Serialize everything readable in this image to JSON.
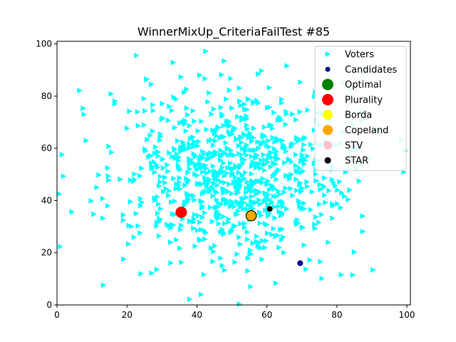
{
  "chart_data": {
    "type": "scatter",
    "title": "WinnerMixUp_CriteriaFailTest #85",
    "xlabel": "",
    "ylabel": "",
    "xlim": [
      0,
      101
    ],
    "ylim": [
      0,
      101
    ],
    "x_ticks": [
      "0",
      "20",
      "40",
      "60",
      "80",
      "100"
    ],
    "y_ticks": [
      "0",
      "20",
      "40",
      "60",
      "80",
      "100"
    ],
    "grid": false,
    "legend_position": "top-right",
    "voters_generation": {
      "count": 900,
      "center": [
        50,
        50
      ],
      "std": 17,
      "seed": 85
    },
    "colors": {
      "Voters": "#00ffff",
      "Candidates": "#00008b",
      "Optimal": "#008000",
      "Plurality": "#ff0000",
      "Borda": "#ffff00",
      "Copeland": "#ffa500",
      "STV": "#ffc0cb",
      "STAR": "#000000"
    },
    "series": [
      {
        "name": "Voters",
        "marker": "triangle-right",
        "points": []
      },
      {
        "name": "Candidates",
        "marker": "circle",
        "points": [
          [
            35.5,
            35.5
          ],
          [
            55.5,
            34.2
          ],
          [
            60.8,
            36.8
          ],
          [
            69.5,
            16.0
          ]
        ]
      },
      {
        "name": "Optimal",
        "marker": "circle",
        "points": [
          [
            55.5,
            34.2
          ]
        ]
      },
      {
        "name": "Plurality",
        "marker": "circle",
        "points": [
          [
            35.5,
            35.5
          ]
        ]
      },
      {
        "name": "Borda",
        "marker": "circle",
        "points": [
          [
            55.5,
            34.2
          ]
        ]
      },
      {
        "name": "Copeland",
        "marker": "circle",
        "points": [
          [
            55.5,
            34.2
          ]
        ]
      },
      {
        "name": "STV",
        "marker": "circle",
        "points": [
          [
            60.8,
            36.8
          ]
        ]
      },
      {
        "name": "STAR",
        "marker": "circle",
        "points": [
          [
            60.8,
            36.8
          ]
        ]
      }
    ]
  }
}
